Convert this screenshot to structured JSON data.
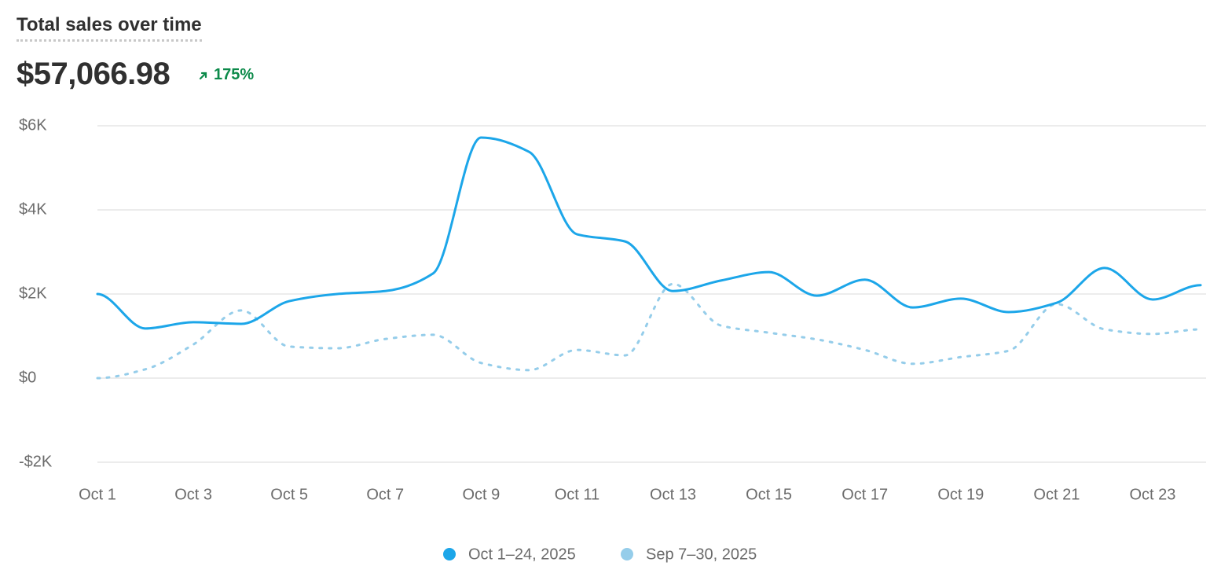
{
  "title": "Total sales over time",
  "total": "$57,066.98",
  "change": "175%",
  "chart_data": {
    "type": "line",
    "categories": [
      "Oct 1",
      null,
      "Oct 3",
      null,
      "Oct 5",
      null,
      "Oct 7",
      null,
      "Oct 9",
      null,
      "Oct 11",
      null,
      "Oct 13",
      null,
      "Oct 15",
      null,
      "Oct 17",
      null,
      "Oct 19",
      null,
      "Oct 21",
      null,
      "Oct 23",
      null
    ],
    "series": [
      {
        "name": "Oct 1–24, 2025",
        "color": "#1ca6e9",
        "dashed": false,
        "values": [
          2000,
          1180,
          1330,
          1290,
          1830,
          2000,
          2070,
          2490,
          5720,
          5380,
          3420,
          3250,
          2070,
          2320,
          2520,
          1960,
          2340,
          1680,
          1890,
          1570,
          1790,
          2620,
          1870,
          2210
        ]
      },
      {
        "name": "Sep 7–30, 2025",
        "color": "#95cdea",
        "dashed": true,
        "values": [
          0,
          210,
          800,
          1610,
          750,
          710,
          930,
          1030,
          360,
          190,
          670,
          540,
          2240,
          1250,
          1080,
          920,
          670,
          340,
          500,
          650,
          1760,
          1160,
          1050,
          1160
        ]
      }
    ],
    "ylim": [
      -2000,
      6000
    ],
    "yticks": [
      {
        "value": -2000,
        "label": "-$2K"
      },
      {
        "value": 0,
        "label": "$0"
      },
      {
        "value": 2000,
        "label": "$2K"
      },
      {
        "value": 4000,
        "label": "$4K"
      },
      {
        "value": 6000,
        "label": "$6K"
      }
    ],
    "grid": true
  }
}
